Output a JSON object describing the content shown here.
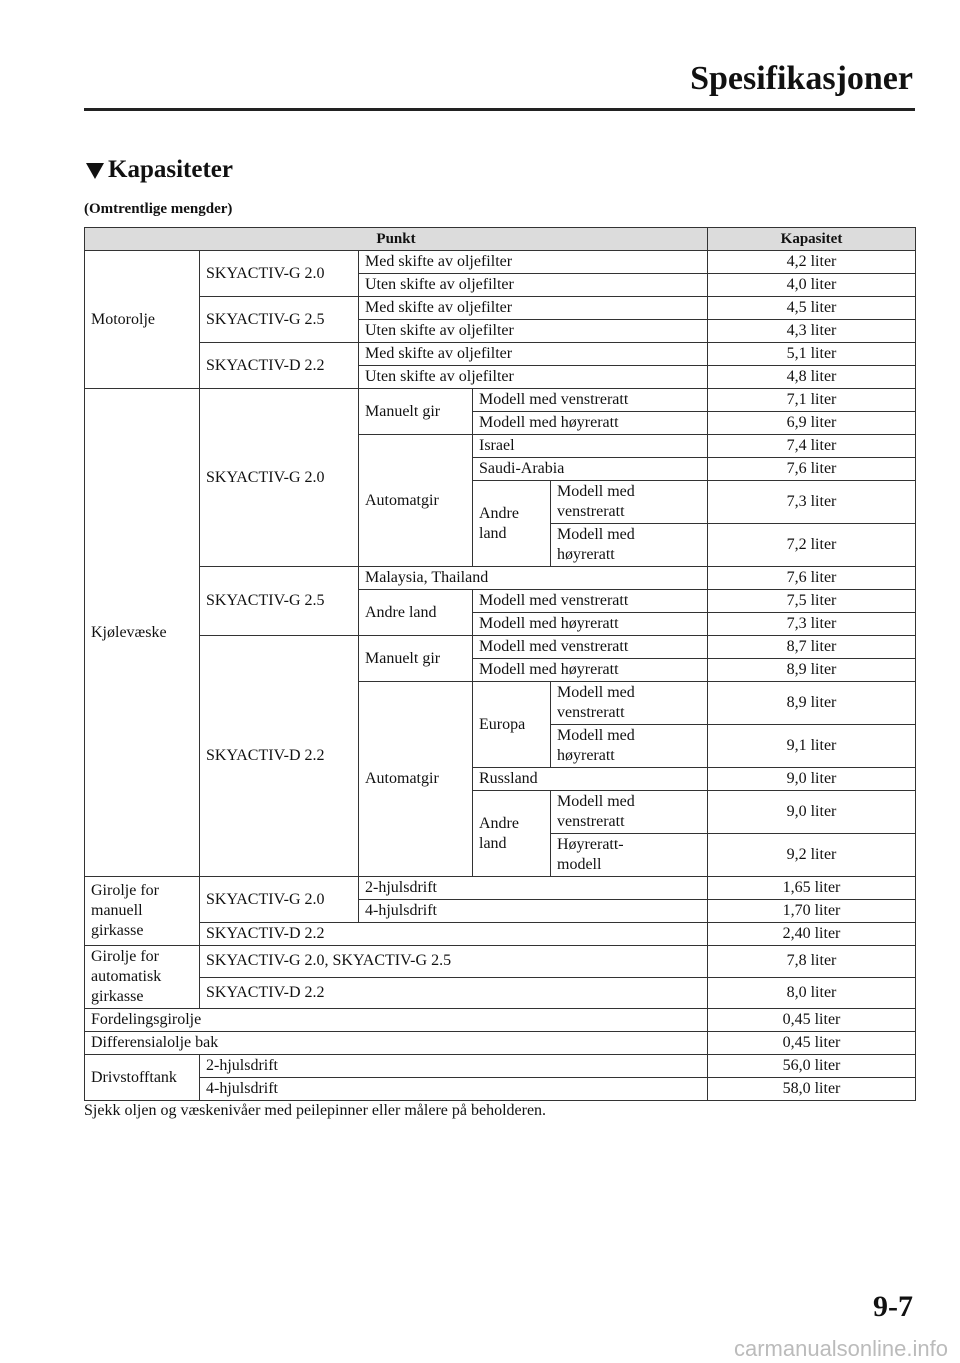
{
  "header": {
    "title": "Spesifikasjoner"
  },
  "section": {
    "title": "Kapasiteter",
    "subtitle": "(Omtrentlige mengder)"
  },
  "table": {
    "columns": [
      "Punkt",
      "Kapasitet"
    ],
    "rows": [
      [
        "Motorolje",
        "SKYACTIV-G 2.0",
        "Med skifte av oljefilter",
        "4,2 liter"
      ],
      [
        "Uten skifte av oljefilter",
        "4,0 liter"
      ],
      [
        "SKYACTIV-G 2.5",
        "Med skifte av oljefilter",
        "4,5 liter"
      ],
      [
        "Uten skifte av oljefilter",
        "4,3 liter"
      ],
      [
        "SKYACTIV-D 2.2",
        "Med skifte av oljefilter",
        "5,1 liter"
      ],
      [
        "Uten skifte av oljefilter",
        "4,8 liter"
      ],
      [
        "Kjølevæske",
        "SKYACTIV-G 2.0",
        "Manuelt gir",
        "Modell med venstreratt",
        "7,1 liter"
      ],
      [
        "Modell med høyreratt",
        "6,9 liter"
      ],
      [
        "Automatgir",
        "Israel",
        "7,4 liter"
      ],
      [
        "Saudi-Arabia",
        "7,6 liter"
      ],
      [
        "Andre land",
        "Modell med venstreratt",
        "7,3 liter"
      ],
      [
        "Modell med høyreratt",
        "7,2 liter"
      ],
      [
        "SKYACTIV-G 2.5",
        "Malaysia, Thailand",
        "7,6 liter"
      ],
      [
        "Andre land",
        "Modell med venstreratt",
        "7,5 liter"
      ],
      [
        "Modell med høyreratt",
        "7,3 liter"
      ],
      [
        "SKYACTIV-D 2.2",
        "Manuelt gir",
        "Modell med venstreratt",
        "8,7 liter"
      ],
      [
        "Modell med høyreratt",
        "8,9 liter"
      ],
      [
        "Automatgir",
        "Europa",
        "Modell med venstreratt",
        "8,9 liter"
      ],
      [
        "Modell med høyreratt",
        "9,1 liter"
      ],
      [
        "Russland",
        "9,0 liter"
      ],
      [
        "Andre land",
        "Modell med venstreratt",
        "9,0 liter"
      ],
      [
        "Høyreratt-modell",
        "9,2 liter"
      ],
      [
        "Girolje for manuell girkasse",
        "SKYACTIV-G 2.0",
        "2-hjulsdrift",
        "1,65 liter"
      ],
      [
        "4-hjulsdrift",
        "1,70 liter"
      ],
      [
        "SKYACTIV-D 2.2",
        "2,40 liter"
      ],
      [
        "Girolje for automatisk girkasse",
        "SKYACTIV-G 2.0, SKYACTIV-G 2.5",
        "7,8 liter"
      ],
      [
        "SKYACTIV-D 2.2",
        "8,0 liter"
      ],
      [
        "Fordelingsgirolje",
        "0,45 liter"
      ],
      [
        "Differensialolje bak",
        "0,45 liter"
      ],
      [
        "Drivstofftank",
        "2-hjulsdrift",
        "56,0 liter"
      ],
      [
        "4-hjulsdrift",
        "58,0 liter"
      ]
    ]
  },
  "note": "Sjekk oljen og væskenivåer med peilepinner eller målere på beholderen.",
  "footer": {
    "page_number": "9-7",
    "watermark": "carmanualsonline.info"
  }
}
